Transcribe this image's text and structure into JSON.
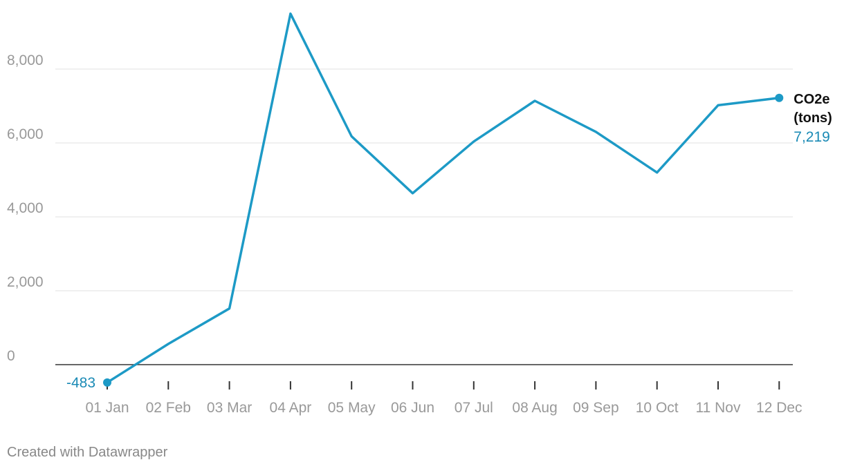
{
  "footer": {
    "credit": "Created with Datawrapper"
  },
  "colors": {
    "line": "#1d9ac6",
    "label": "#1a8ab5",
    "grid": "#e2e2e2",
    "axis": "#333333",
    "tick_text": "#999999",
    "footer": "#888888",
    "series_label": "#111111"
  },
  "chart_data": {
    "type": "line",
    "title": "",
    "xlabel": "",
    "ylabel": "",
    "ylim": [
      -500,
      9500
    ],
    "yticks": [
      0,
      2000,
      4000,
      6000,
      8000
    ],
    "ytick_labels": [
      "0",
      "2,000",
      "4,000",
      "6,000",
      "8,000"
    ],
    "grid": true,
    "categories": [
      "01 Jan",
      "02 Feb",
      "03 Mar",
      "04 Apr",
      "05 May",
      "06 Jun",
      "07 Jul",
      "08 Aug",
      "09 Sep",
      "10 Oct",
      "11 Nov",
      "12 Dec"
    ],
    "series": [
      {
        "name": "CO2e (tons)",
        "name_lines": [
          "CO2e",
          "(tons)"
        ],
        "values": [
          -483,
          560,
          1520,
          9500,
          6180,
          4640,
          6040,
          7140,
          6300,
          5200,
          7020,
          7219
        ]
      }
    ],
    "annotations": {
      "first_value_label": "-483",
      "last_value_label": "7,219"
    }
  }
}
